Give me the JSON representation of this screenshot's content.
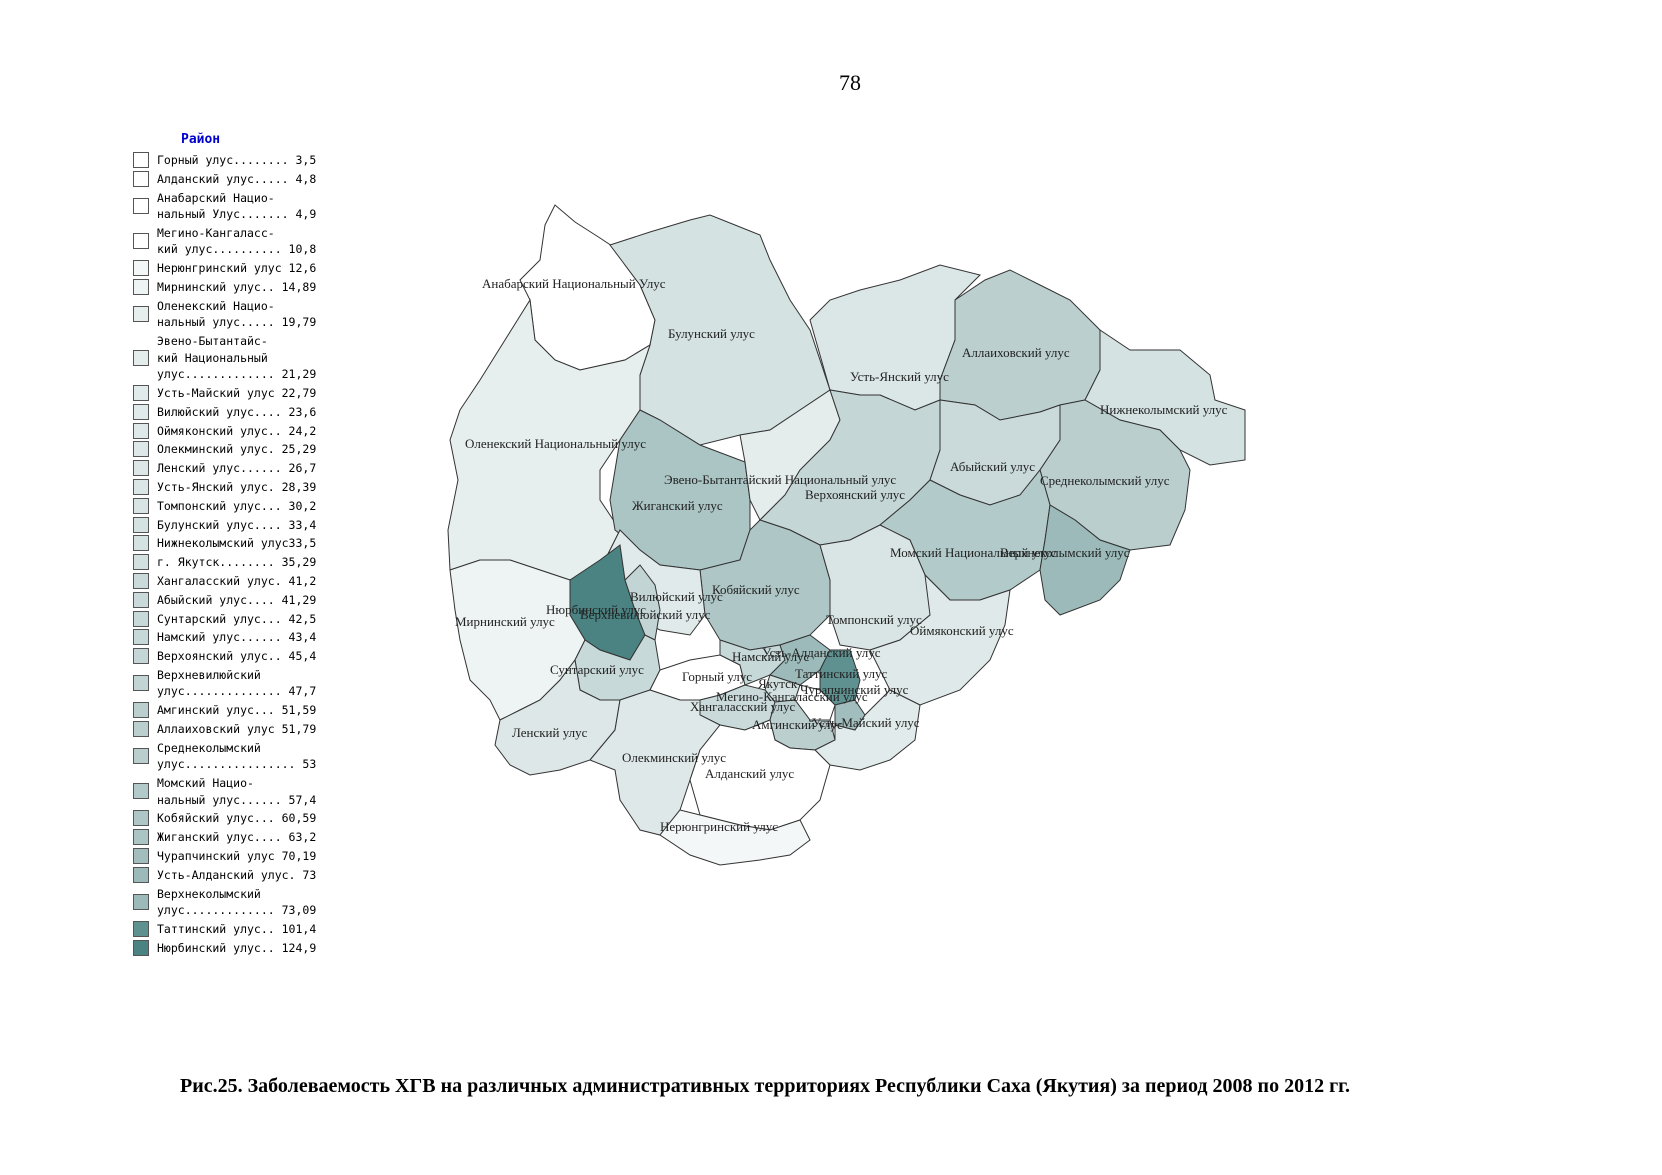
{
  "page_number": "78",
  "legend": {
    "title": "Район",
    "items": [
      {
        "text": "Горный улус........ 3,5",
        "color": "#ffffff"
      },
      {
        "text": "Алданский улус..... 4,8",
        "color": "#ffffff"
      },
      {
        "text": "Анабарский Нацио-\nнальный Улус....... 4,9",
        "color": "#ffffff"
      },
      {
        "text": "Мегино-Кангаласс-\nкий улус.......... 10,8",
        "color": "#ffffff"
      },
      {
        "text": "Нерюнгринский улус 12,6",
        "color": "#f4f7f7"
      },
      {
        "text": "Мирнинский улус.. 14,89",
        "color": "#eef3f3"
      },
      {
        "text": "Оленекский Нацио-\nнальный улус..... 19,79",
        "color": "#e6eeee"
      },
      {
        "text": "Эвено-Бытантайс-\nкий Национальный\nулус............. 21,29",
        "color": "#e4ecec"
      },
      {
        "text": "Усть-Майский улус 22,79",
        "color": "#e2ebeb"
      },
      {
        "text": "Вилюйский улус.... 23,6",
        "color": "#e1eaea"
      },
      {
        "text": "Оймяконский улус.. 24,2",
        "color": "#e0e9e9"
      },
      {
        "text": "Олекминский улус. 25,29",
        "color": "#dfe8e8"
      },
      {
        "text": "Ленский улус...... 26,7",
        "color": "#dde7e7"
      },
      {
        "text": "Усть-Янский улус. 28,39",
        "color": "#dbe6e6"
      },
      {
        "text": "Томпонский улус... 30,2",
        "color": "#d9e4e4"
      },
      {
        "text": "Булунский улус.... 33,4",
        "color": "#d5e2e2"
      },
      {
        "text": "Нижнеколымский улус33,5",
        "color": "#d5e2e2"
      },
      {
        "text": "г. Якутск........ 35,29",
        "color": "#d2e0e0"
      },
      {
        "text": "Хангаласский улус. 41,2",
        "color": "#cadada"
      },
      {
        "text": "Абыйский улус.... 41,29",
        "color": "#cadada"
      },
      {
        "text": "Сунтарский улус... 42,5",
        "color": "#c8d9d9"
      },
      {
        "text": "Намский улус...... 43,4",
        "color": "#c7d8d8"
      },
      {
        "text": "Верхоянский улус.. 45,4",
        "color": "#c5d6d6"
      },
      {
        "text": "Верхневилюйский\nулус.............. 47,7",
        "color": "#c2d4d4"
      },
      {
        "text": "Амгинский улус... 51,59",
        "color": "#bccfcf"
      },
      {
        "text": "Аллаиховский улус 51,79",
        "color": "#bccfcf"
      },
      {
        "text": "Среднеколымский\nулус................ 53",
        "color": "#bacece"
      },
      {
        "text": "Момский Нацио-\nнальный улус...... 57,4",
        "color": "#b3caca"
      },
      {
        "text": "Кобяйский улус... 60,59",
        "color": "#afc6c6"
      },
      {
        "text": "Жиганский улус.... 63,2",
        "color": "#abc4c4"
      },
      {
        "text": "Чурапчинский улус 70,19",
        "color": "#a1bdbd"
      },
      {
        "text": "Усть-Алданский улус. 73",
        "color": "#9cbaba"
      },
      {
        "text": "Верхнеколымский\nулус............. 73,09",
        "color": "#9cbaba"
      },
      {
        "text": "Таттинский улус.. 101,4",
        "color": "#5f9191"
      },
      {
        "text": "Нюрбинский улус.. 124,9",
        "color": "#4b8282"
      }
    ]
  },
  "map": {
    "district_labels": [
      "Анабарский Национальный Улус",
      "Булунский улус",
      "Аллаиховский улус",
      "Усть-Янский улус",
      "Нижнеколымский улус",
      "Оленекский Национальный улус",
      "Эвено-Бытантайский Национальный улус",
      "Абыйский улус",
      "Среднеколымский улус",
      "Жиганский улус",
      "Верхоянский улус",
      "Момский Национальный улус",
      "Верхнеколымский улус",
      "Вилюйский улус",
      "Кобяйский улус",
      "Нюрбинский улус",
      "Верхневилюйский улус",
      "Мирнинский улус",
      "Томпонский улус",
      "Оймяконский улус",
      "Усть-Алданский улус",
      "Намский улус",
      "Таттинский улус",
      "Сунтарский улус",
      "Горный улус",
      "Якутск",
      "Чурапчинский улус",
      "Мегино-Кангаласский улус",
      "Хангаласский улус",
      "Амгинский улус",
      "Усть-Майский улус",
      "Ленский улус",
      "Олекминский улус",
      "Алданский улус",
      "Нерюнгринский улус"
    ]
  },
  "caption": "Рис.25. Заболеваемость ХГВ на различных административных территориях Республики Саха (Якутия) за период 2008 по 2012 гг."
}
